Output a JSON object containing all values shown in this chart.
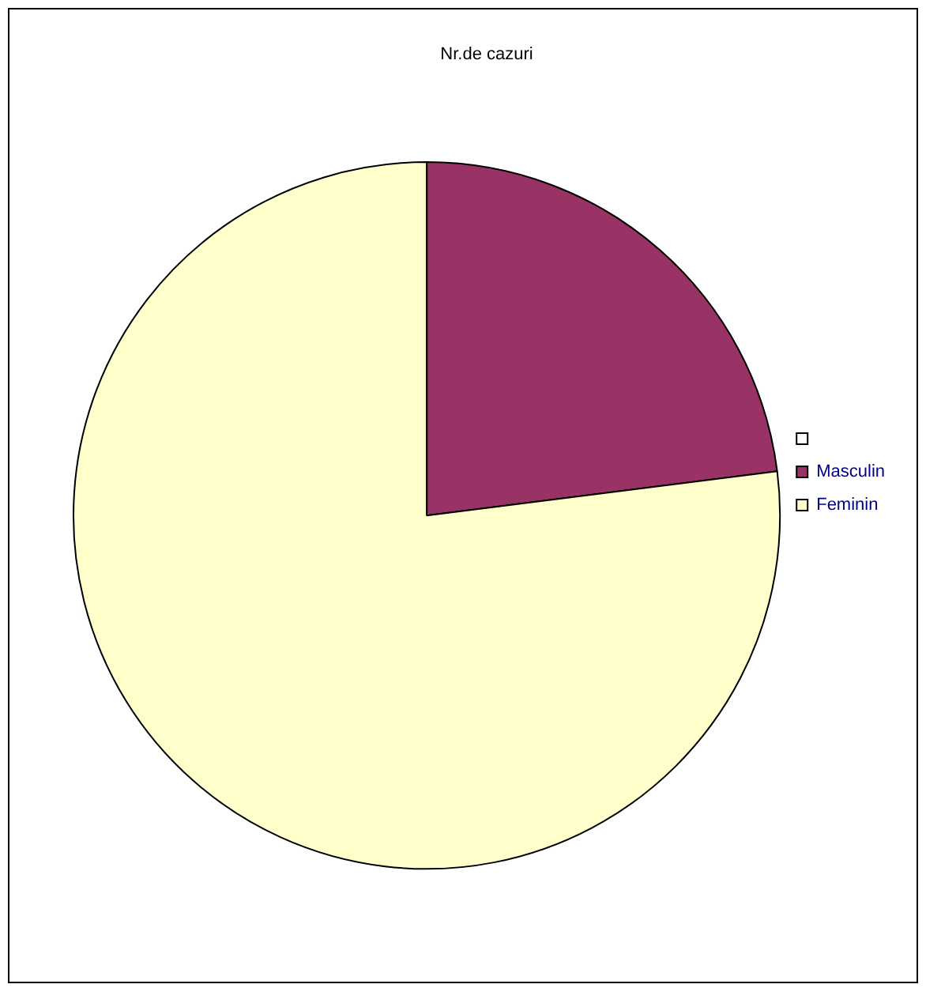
{
  "chart_data": {
    "type": "pie",
    "title": "Nr.de cazuri",
    "categories": [
      null,
      "Masculin",
      "Feminin"
    ],
    "values": [
      0,
      23,
      77
    ],
    "colors": [
      "#ffffff",
      "#993366",
      "#ffffcc"
    ],
    "legend": "right"
  }
}
